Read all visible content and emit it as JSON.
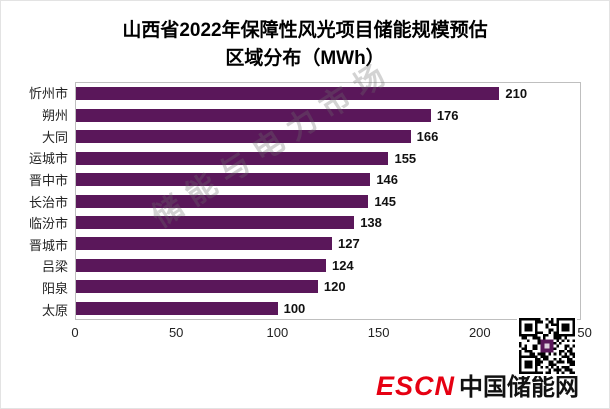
{
  "title": {
    "line1": "山西省2022年保障性风光项目储能规模预估",
    "line2": "区域分布（MWh）"
  },
  "chart_data": {
    "type": "bar",
    "orientation": "horizontal",
    "title": "山西省2022年保障性风光项目储能规模预估 区域分布（MWh）",
    "categories": [
      "忻州市",
      "朔州",
      "大同",
      "运城市",
      "晋中市",
      "长治市",
      "临汾市",
      "晋城市",
      "吕梁",
      "阳泉",
      "太原"
    ],
    "values": [
      210,
      176,
      166,
      155,
      146,
      145,
      138,
      127,
      124,
      120,
      100
    ],
    "xlim": [
      0,
      250
    ],
    "x_ticks": [
      0,
      50,
      100,
      150,
      200,
      250
    ],
    "bar_color": "#5a175a",
    "grid": false,
    "legend": "none",
    "unit": "MWh"
  },
  "watermark": "储能与电力市场",
  "footer": {
    "logo_red": "ESCN",
    "logo_black": "中国储能网"
  }
}
